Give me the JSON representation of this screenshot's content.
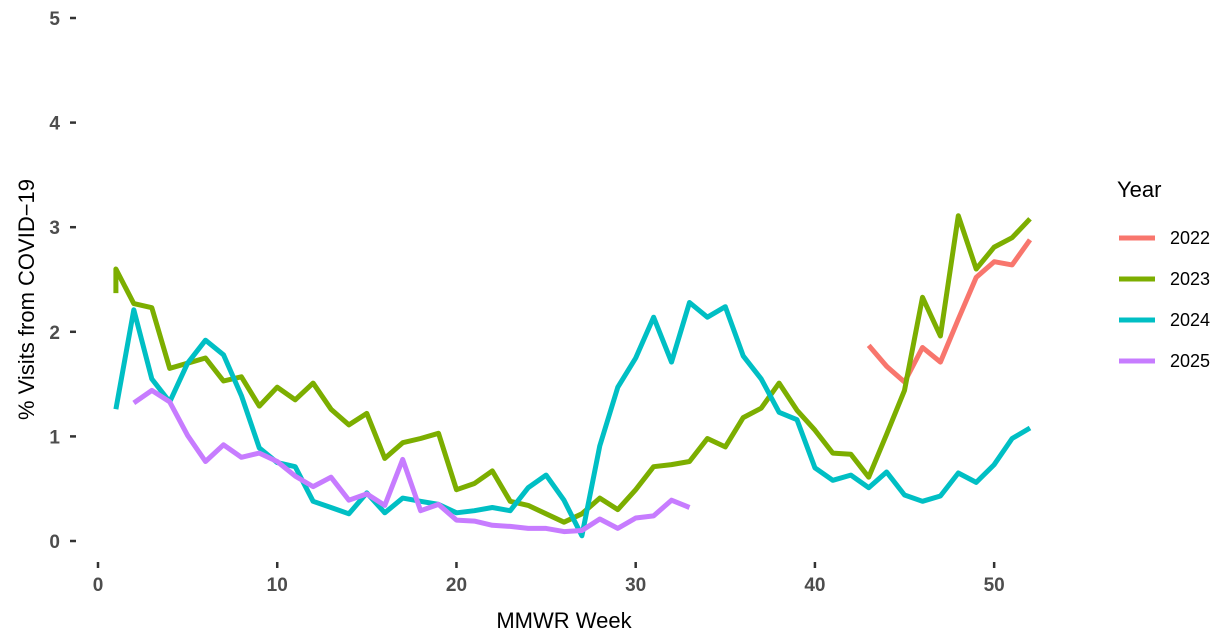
{
  "chart_data": {
    "type": "line",
    "xlabel": "MMWR Week",
    "ylabel": "% Visits from COVID−19",
    "xlim": [
      0,
      52
    ],
    "ylim": [
      0,
      5
    ],
    "x_ticks": [
      0,
      10,
      20,
      30,
      40,
      50
    ],
    "y_ticks": [
      0,
      1,
      2,
      3,
      4,
      5
    ],
    "x_tick_labels": [
      "0",
      "10",
      "20",
      "30",
      "40",
      "50"
    ],
    "y_tick_labels": [
      "0",
      "1",
      "2",
      "3",
      "4",
      "5"
    ],
    "grid": false,
    "legend": {
      "title": "Year",
      "position": "right"
    },
    "series": [
      {
        "name": "2022",
        "color": "#F8766D",
        "x": [
          43,
          44,
          45,
          46,
          47,
          48,
          49,
          50,
          51,
          52
        ],
        "y": [
          1.87,
          1.67,
          1.52,
          1.85,
          1.71,
          2.12,
          2.52,
          2.67,
          2.64,
          2.88
        ]
      },
      {
        "name": "2023",
        "color": "#7CAE00",
        "x": [
          1,
          1,
          2,
          3,
          4,
          5,
          6,
          7,
          8,
          9,
          10,
          11,
          12,
          13,
          14,
          15,
          16,
          17,
          18,
          19,
          20,
          21,
          22,
          23,
          24,
          25,
          26,
          27,
          28,
          29,
          30,
          31,
          32,
          33,
          34,
          35,
          36,
          37,
          38,
          39,
          40,
          41,
          42,
          43,
          44,
          45,
          46,
          47,
          48,
          49,
          50,
          51,
          52
        ],
        "y": [
          2.37,
          2.6,
          2.27,
          2.23,
          1.65,
          1.7,
          1.75,
          1.53,
          1.57,
          1.29,
          1.47,
          1.35,
          1.51,
          1.26,
          1.11,
          1.22,
          0.79,
          0.94,
          0.98,
          1.03,
          0.49,
          0.55,
          0.67,
          0.38,
          0.34,
          0.26,
          0.18,
          0.26,
          0.41,
          0.3,
          0.49,
          0.71,
          0.73,
          0.76,
          0.98,
          0.9,
          1.18,
          1.27,
          1.51,
          1.25,
          1.06,
          0.84,
          0.83,
          0.61,
          1.02,
          1.44,
          2.33,
          1.96,
          3.11,
          2.6,
          2.81,
          2.9,
          3.08
        ]
      },
      {
        "name": "2024",
        "color": "#00BFC4",
        "x": [
          1,
          2,
          3,
          4,
          5,
          6,
          7,
          8,
          9,
          10,
          11,
          12,
          13,
          14,
          15,
          16,
          17,
          18,
          19,
          20,
          21,
          22,
          23,
          24,
          25,
          26,
          27,
          28,
          29,
          30,
          31,
          32,
          33,
          34,
          35,
          36,
          37,
          38,
          39,
          40,
          41,
          42,
          43,
          44,
          45,
          46,
          47,
          48,
          49,
          50,
          51,
          52
        ],
        "y": [
          1.26,
          2.21,
          1.55,
          1.33,
          1.7,
          1.92,
          1.78,
          1.39,
          0.89,
          0.75,
          0.71,
          0.38,
          0.32,
          0.26,
          0.46,
          0.27,
          0.41,
          0.38,
          0.35,
          0.27,
          0.29,
          0.32,
          0.29,
          0.51,
          0.63,
          0.39,
          0.05,
          0.91,
          1.47,
          1.75,
          2.14,
          1.71,
          2.28,
          2.14,
          2.24,
          1.77,
          1.55,
          1.23,
          1.16,
          0.7,
          0.58,
          0.63,
          0.51,
          0.66,
          0.44,
          0.38,
          0.43,
          0.65,
          0.56,
          0.73,
          0.98,
          1.08
        ]
      },
      {
        "name": "2025",
        "color": "#C77CFF",
        "x": [
          2,
          3,
          4,
          5,
          6,
          7,
          8,
          9,
          10,
          11,
          12,
          13,
          14,
          15,
          16,
          17,
          18,
          19,
          20,
          21,
          22,
          23,
          24,
          25,
          26,
          27,
          28,
          29,
          30,
          31,
          32,
          33
        ],
        "y": [
          1.32,
          1.44,
          1.33,
          1.01,
          0.76,
          0.92,
          0.8,
          0.84,
          0.76,
          0.62,
          0.52,
          0.61,
          0.39,
          0.45,
          0.34,
          0.78,
          0.29,
          0.35,
          0.2,
          0.19,
          0.15,
          0.14,
          0.12,
          0.12,
          0.09,
          0.1,
          0.21,
          0.12,
          0.22,
          0.24,
          0.39,
          0.32
        ]
      }
    ]
  }
}
